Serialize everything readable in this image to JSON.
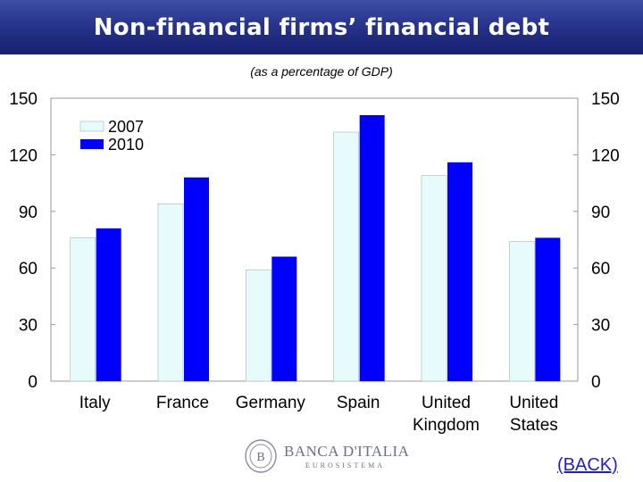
{
  "header": {
    "title": "Non-financial firms’ financial debt"
  },
  "chart_data": {
    "type": "bar",
    "subtitle": "(as a percentage of GDP)",
    "categories": [
      [
        "Italy"
      ],
      [
        "France"
      ],
      [
        "Germany"
      ],
      [
        "Spain"
      ],
      [
        "United",
        "Kingdom"
      ],
      [
        "United",
        "States"
      ]
    ],
    "series": [
      {
        "name": "2007",
        "values": [
          76,
          94,
          59,
          132,
          109,
          74
        ],
        "color": "#e6fcfc"
      },
      {
        "name": "2010",
        "values": [
          81,
          108,
          66,
          141,
          116,
          76
        ],
        "color": "#0000ff"
      }
    ],
    "ylim": [
      0,
      150
    ],
    "yticks": [
      "0",
      "30",
      "60",
      "90",
      "120",
      "150"
    ],
    "ylabel": "",
    "xlabel": "",
    "secondary_axis": true,
    "grid": false,
    "legend": "top-left"
  },
  "footer": {
    "brand_name": "BANCA D'ITALIA",
    "brand_sub": "EUROSISTEMA",
    "back_link": "(BACK)"
  }
}
